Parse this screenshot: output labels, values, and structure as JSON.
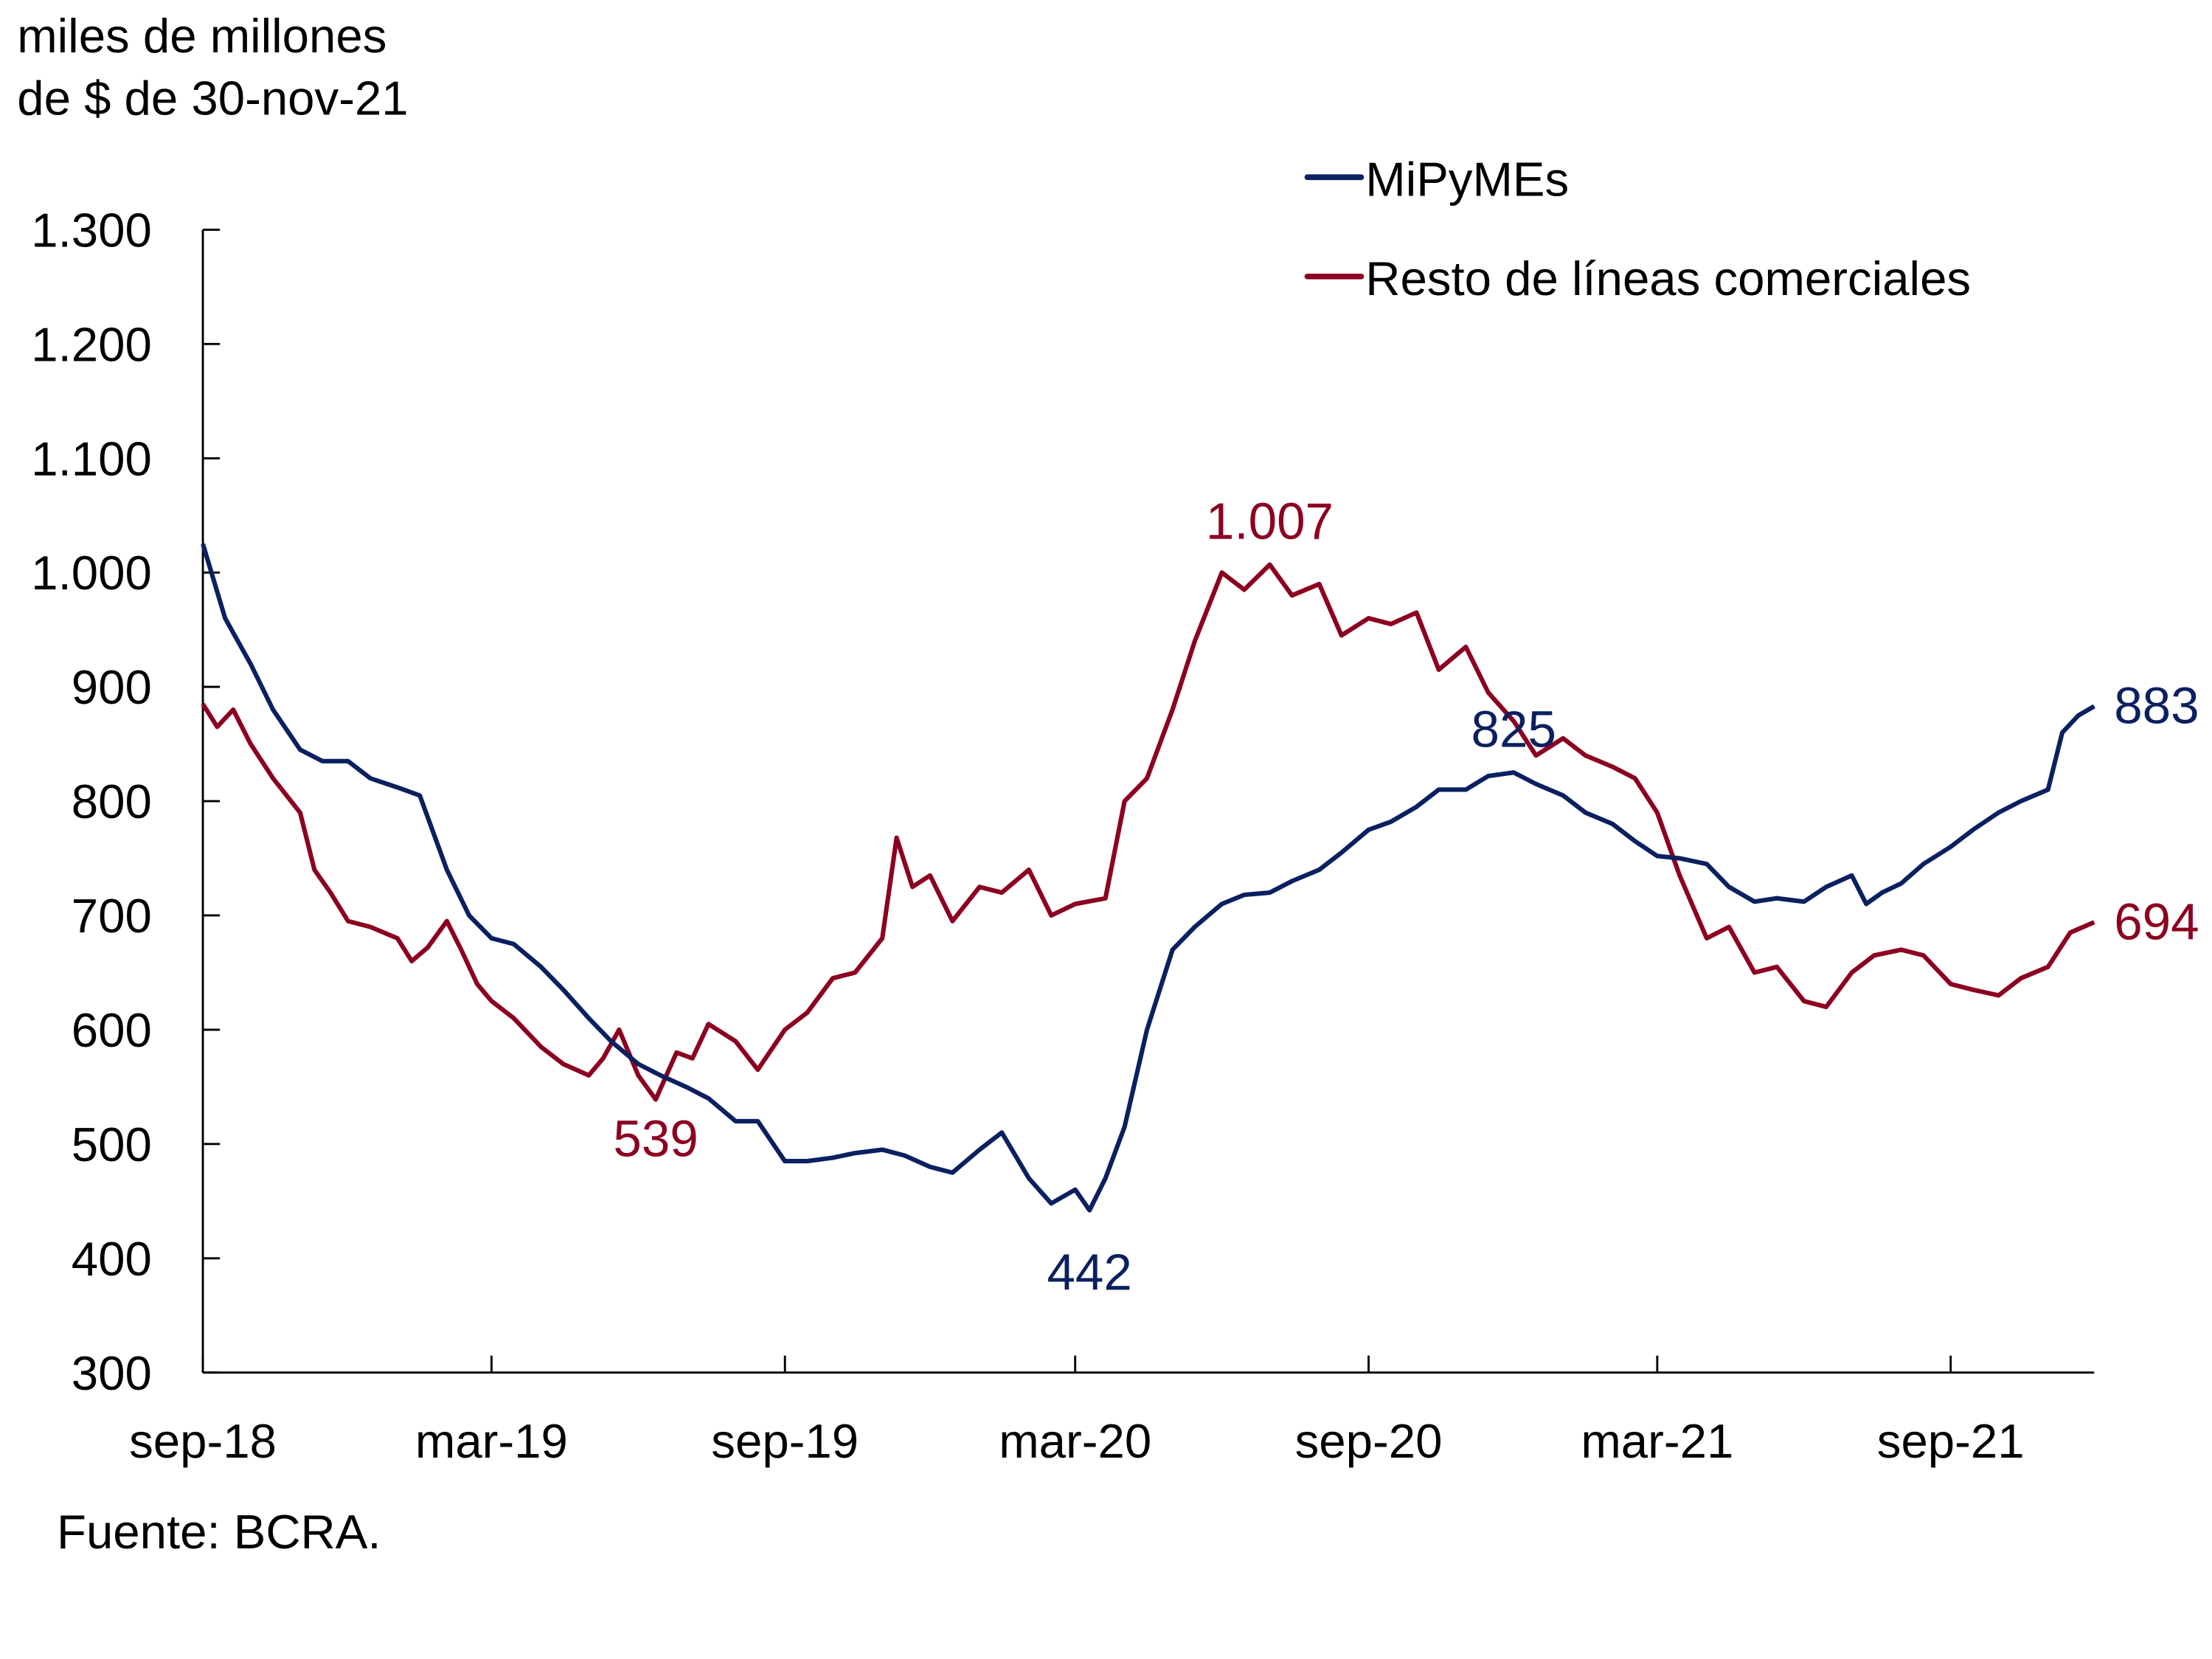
{
  "chart_data": {
    "type": "line",
    "ylabel": "miles de millones\nde $ de 30-nov-21",
    "ylim": [
      300,
      1300
    ],
    "yticks": [
      300,
      400,
      500,
      600,
      700,
      800,
      900,
      1000,
      1100,
      1200,
      1300
    ],
    "ytick_labels": [
      "300",
      "400",
      "500",
      "600",
      "700",
      "800",
      "900",
      "1.000",
      "1.100",
      "1.200",
      "1.300"
    ],
    "xlim": [
      "2018-09-01",
      "2021-11-30"
    ],
    "xticks": [
      "2018-09-01",
      "2019-03-01",
      "2019-09-01",
      "2020-03-01",
      "2020-09-01",
      "2021-03-01",
      "2021-09-01"
    ],
    "xtick_labels": [
      "sep-18",
      "mar-19",
      "sep-19",
      "mar-20",
      "sep-20",
      "mar-21",
      "sep-21"
    ],
    "grid": false,
    "legend_position": "top-right",
    "source": "Fuente: BCRA.",
    "series": [
      {
        "name": "MiPyMEs",
        "color": "#0a2060",
        "points": [
          [
            "2018-09-01",
            1025
          ],
          [
            "2018-09-15",
            960
          ],
          [
            "2018-10-01",
            920
          ],
          [
            "2018-10-15",
            880
          ],
          [
            "2018-11-01",
            845
          ],
          [
            "2018-11-15",
            835
          ],
          [
            "2018-12-01",
            835
          ],
          [
            "2018-12-15",
            820
          ],
          [
            "2019-01-01",
            812
          ],
          [
            "2019-01-15",
            805
          ],
          [
            "2019-02-01",
            740
          ],
          [
            "2019-02-15",
            700
          ],
          [
            "2019-03-01",
            680
          ],
          [
            "2019-03-15",
            675
          ],
          [
            "2019-04-01",
            655
          ],
          [
            "2019-04-15",
            635
          ],
          [
            "2019-05-01",
            610
          ],
          [
            "2019-05-15",
            590
          ],
          [
            "2019-06-01",
            570
          ],
          [
            "2019-06-15",
            560
          ],
          [
            "2019-07-01",
            550
          ],
          [
            "2019-07-15",
            540
          ],
          [
            "2019-08-01",
            520
          ],
          [
            "2019-08-15",
            520
          ],
          [
            "2019-09-01",
            485
          ],
          [
            "2019-09-15",
            485
          ],
          [
            "2019-10-01",
            488
          ],
          [
            "2019-10-15",
            492
          ],
          [
            "2019-11-01",
            495
          ],
          [
            "2019-11-15",
            490
          ],
          [
            "2019-12-01",
            480
          ],
          [
            "2019-12-15",
            475
          ],
          [
            "2020-01-01",
            495
          ],
          [
            "2020-01-15",
            510
          ],
          [
            "2020-02-01",
            470
          ],
          [
            "2020-02-15",
            448
          ],
          [
            "2020-03-01",
            460
          ],
          [
            "2020-03-10",
            442
          ],
          [
            "2020-03-20",
            470
          ],
          [
            "2020-04-01",
            515
          ],
          [
            "2020-04-15",
            600
          ],
          [
            "2020-05-01",
            670
          ],
          [
            "2020-05-15",
            690
          ],
          [
            "2020-06-01",
            710
          ],
          [
            "2020-06-15",
            718
          ],
          [
            "2020-07-01",
            720
          ],
          [
            "2020-07-15",
            730
          ],
          [
            "2020-08-01",
            740
          ],
          [
            "2020-08-15",
            755
          ],
          [
            "2020-09-01",
            775
          ],
          [
            "2020-09-15",
            782
          ],
          [
            "2020-10-01",
            795
          ],
          [
            "2020-10-15",
            810
          ],
          [
            "2020-11-01",
            810
          ],
          [
            "2020-11-15",
            822
          ],
          [
            "2020-12-01",
            825
          ],
          [
            "2020-12-15",
            815
          ],
          [
            "2021-01-01",
            805
          ],
          [
            "2021-01-15",
            790
          ],
          [
            "2021-02-01",
            780
          ],
          [
            "2021-02-15",
            765
          ],
          [
            "2021-03-01",
            752
          ],
          [
            "2021-03-15",
            750
          ],
          [
            "2021-04-01",
            745
          ],
          [
            "2021-04-15",
            725
          ],
          [
            "2021-05-01",
            712
          ],
          [
            "2021-05-15",
            715
          ],
          [
            "2021-06-01",
            712
          ],
          [
            "2021-06-15",
            725
          ],
          [
            "2021-07-01",
            735
          ],
          [
            "2021-07-10",
            710
          ],
          [
            "2021-07-20",
            720
          ],
          [
            "2021-08-01",
            728
          ],
          [
            "2021-08-15",
            745
          ],
          [
            "2021-09-01",
            760
          ],
          [
            "2021-09-15",
            775
          ],
          [
            "2021-10-01",
            790
          ],
          [
            "2021-10-15",
            800
          ],
          [
            "2021-11-01",
            810
          ],
          [
            "2021-11-10",
            860
          ],
          [
            "2021-11-20",
            875
          ],
          [
            "2021-11-30",
            883
          ]
        ]
      },
      {
        "name": "Resto de líneas comerciales",
        "color": "#8c0020",
        "points": [
          [
            "2018-09-01",
            885
          ],
          [
            "2018-09-10",
            865
          ],
          [
            "2018-09-20",
            880
          ],
          [
            "2018-10-01",
            850
          ],
          [
            "2018-10-15",
            820
          ],
          [
            "2018-11-01",
            790
          ],
          [
            "2018-11-10",
            740
          ],
          [
            "2018-11-20",
            720
          ],
          [
            "2018-12-01",
            695
          ],
          [
            "2018-12-15",
            690
          ],
          [
            "2019-01-01",
            680
          ],
          [
            "2019-01-10",
            660
          ],
          [
            "2019-01-20",
            672
          ],
          [
            "2019-02-01",
            695
          ],
          [
            "2019-02-10",
            670
          ],
          [
            "2019-02-20",
            640
          ],
          [
            "2019-03-01",
            625
          ],
          [
            "2019-03-15",
            610
          ],
          [
            "2019-04-01",
            585
          ],
          [
            "2019-04-15",
            570
          ],
          [
            "2019-05-01",
            560
          ],
          [
            "2019-05-10",
            575
          ],
          [
            "2019-05-20",
            600
          ],
          [
            "2019-06-01",
            560
          ],
          [
            "2019-06-12",
            539
          ],
          [
            "2019-06-25",
            580
          ],
          [
            "2019-07-05",
            575
          ],
          [
            "2019-07-15",
            605
          ],
          [
            "2019-08-01",
            590
          ],
          [
            "2019-08-15",
            565
          ],
          [
            "2019-09-01",
            600
          ],
          [
            "2019-09-15",
            615
          ],
          [
            "2019-10-01",
            645
          ],
          [
            "2019-10-15",
            650
          ],
          [
            "2019-11-01",
            680
          ],
          [
            "2019-11-10",
            768
          ],
          [
            "2019-11-20",
            725
          ],
          [
            "2019-12-01",
            735
          ],
          [
            "2019-12-15",
            695
          ],
          [
            "2020-01-01",
            725
          ],
          [
            "2020-01-15",
            720
          ],
          [
            "2020-02-01",
            740
          ],
          [
            "2020-02-15",
            700
          ],
          [
            "2020-03-01",
            710
          ],
          [
            "2020-03-20",
            715
          ],
          [
            "2020-04-01",
            800
          ],
          [
            "2020-04-15",
            820
          ],
          [
            "2020-05-01",
            880
          ],
          [
            "2020-05-15",
            940
          ],
          [
            "2020-06-01",
            1000
          ],
          [
            "2020-06-15",
            985
          ],
          [
            "2020-07-01",
            1007
          ],
          [
            "2020-07-15",
            980
          ],
          [
            "2020-08-01",
            990
          ],
          [
            "2020-08-15",
            945
          ],
          [
            "2020-09-01",
            960
          ],
          [
            "2020-09-15",
            955
          ],
          [
            "2020-10-01",
            965
          ],
          [
            "2020-10-15",
            915
          ],
          [
            "2020-11-01",
            935
          ],
          [
            "2020-11-15",
            895
          ],
          [
            "2020-12-01",
            870
          ],
          [
            "2020-12-15",
            840
          ],
          [
            "2021-01-01",
            855
          ],
          [
            "2021-01-15",
            840
          ],
          [
            "2021-02-01",
            830
          ],
          [
            "2021-02-15",
            820
          ],
          [
            "2021-03-01",
            790
          ],
          [
            "2021-03-15",
            735
          ],
          [
            "2021-04-01",
            680
          ],
          [
            "2021-04-15",
            690
          ],
          [
            "2021-05-01",
            650
          ],
          [
            "2021-05-15",
            655
          ],
          [
            "2021-06-01",
            625
          ],
          [
            "2021-06-15",
            620
          ],
          [
            "2021-07-01",
            650
          ],
          [
            "2021-07-15",
            665
          ],
          [
            "2021-08-01",
            670
          ],
          [
            "2021-08-15",
            665
          ],
          [
            "2021-09-01",
            640
          ],
          [
            "2021-09-15",
            635
          ],
          [
            "2021-10-01",
            630
          ],
          [
            "2021-10-15",
            645
          ],
          [
            "2021-11-01",
            655
          ],
          [
            "2021-11-15",
            685
          ],
          [
            "2021-11-30",
            694
          ]
        ]
      }
    ],
    "annotations": [
      {
        "text": "539",
        "series": "Resto de líneas comerciales",
        "x": "2019-06-12",
        "y": 539
      },
      {
        "text": "1.007",
        "series": "Resto de líneas comerciales",
        "x": "2020-07-01",
        "y": 1007
      },
      {
        "text": "694",
        "series": "Resto de líneas comerciales",
        "x": "2021-11-30",
        "y": 694
      },
      {
        "text": "442",
        "series": "MiPyMEs",
        "x": "2020-03-10",
        "y": 442
      },
      {
        "text": "825",
        "series": "MiPyMEs",
        "x": "2020-12-01",
        "y": 825
      },
      {
        "text": "883",
        "series": "MiPyMEs",
        "x": "2021-11-30",
        "y": 883
      }
    ]
  }
}
